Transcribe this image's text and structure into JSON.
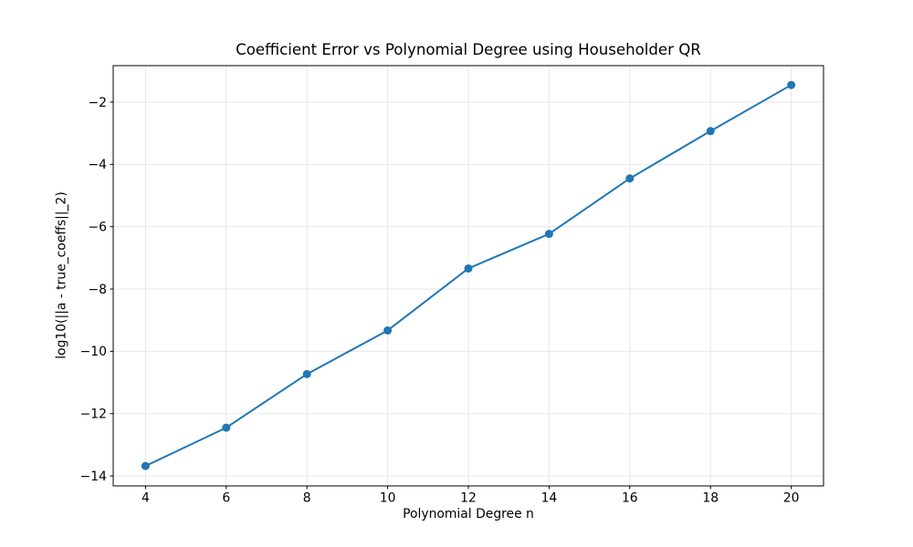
{
  "chart_data": {
    "type": "line",
    "title": "Coefficient Error vs Polynomial Degree using Householder QR",
    "xlabel": "Polynomial Degree n",
    "ylabel": "log10(||a - true_coeffs||_2)",
    "x": [
      4,
      6,
      8,
      10,
      12,
      14,
      16,
      18,
      20
    ],
    "y": [
      -13.68,
      -12.45,
      -10.73,
      -9.33,
      -7.34,
      -6.23,
      -4.45,
      -2.93,
      -1.45
    ],
    "xticks": [
      4,
      6,
      8,
      10,
      12,
      14,
      16,
      18,
      20
    ],
    "yticks": [
      -14,
      -12,
      -10,
      -8,
      -6,
      -4,
      -2
    ],
    "xlim": [
      3.2,
      20.8
    ],
    "ylim": [
      -14.32,
      -0.83
    ],
    "grid": true,
    "legend": "none",
    "marker": "o",
    "marker_radius": 4.5,
    "line_width": 2,
    "colors": {
      "line": "#1f77b4",
      "grid": "#e7e7e7",
      "spine": "#000000",
      "text": "#000000"
    }
  }
}
